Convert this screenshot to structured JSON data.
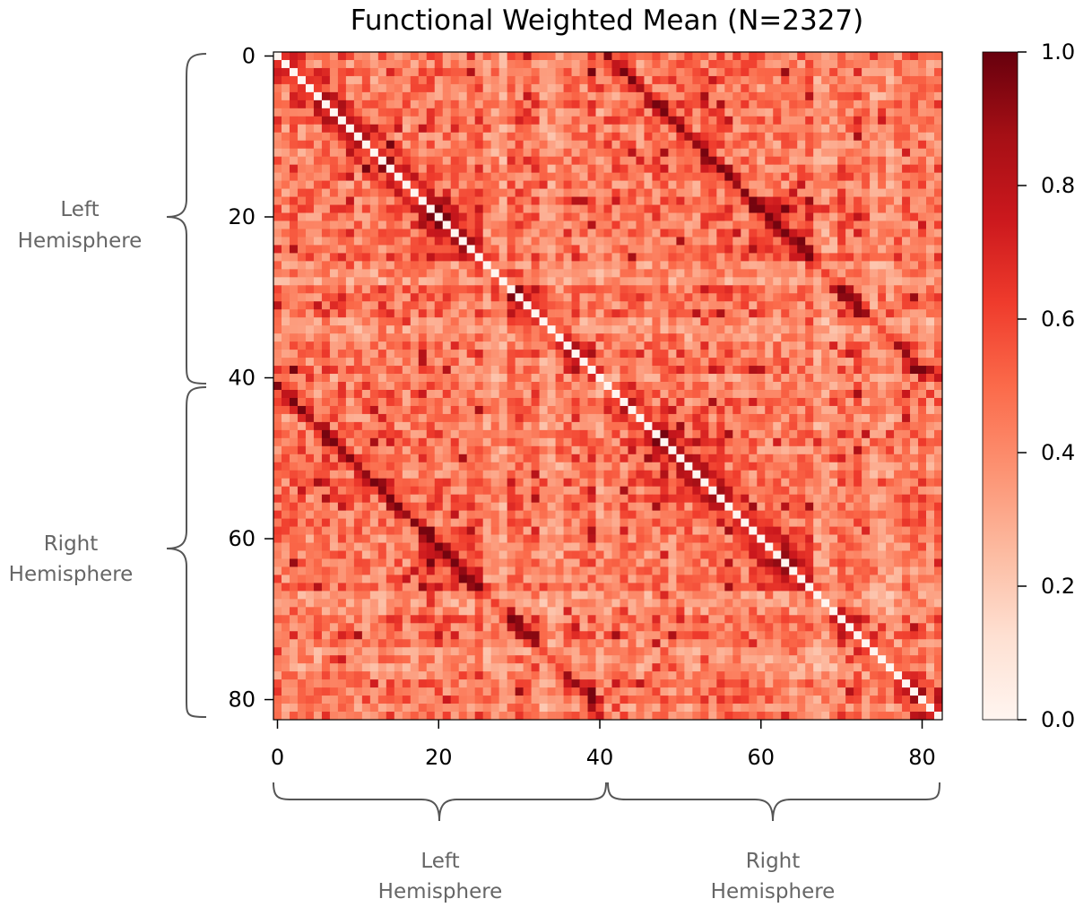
{
  "chart_data": {
    "type": "heatmap",
    "title": "Functional Weighted Mean (N=2327)",
    "matrix_size": 83,
    "x_ticks": [
      "0",
      "20",
      "40",
      "60",
      "80"
    ],
    "y_ticks": [
      "0",
      "20",
      "40",
      "60",
      "80"
    ],
    "colorbar": {
      "colormap": "Reds",
      "ticks": [
        "0.0",
        "0.2",
        "0.4",
        "0.6",
        "0.8",
        "1.0"
      ],
      "range": [
        0.0,
        1.0
      ]
    },
    "groups": [
      {
        "line1": "Left",
        "line2": "Hemisphere",
        "range": [
          0,
          41
        ]
      },
      {
        "line1": "Right",
        "line2": "Hemisphere",
        "range": [
          41,
          83
        ]
      }
    ],
    "diagonal_value": 0.0,
    "structure": "symmetric functional connectivity matrix; off-diagonal values mostly 0.3-0.9, strong homotopic (inter-hemispheric mirrored) diagonals"
  },
  "labels": {
    "left_y": {
      "line1": "Left",
      "line2": "Hemisphere"
    },
    "right_y": {
      "line1": "Right",
      "line2": "Hemisphere"
    },
    "left_x": {
      "line1": "Left",
      "line2": "Hemisphere"
    },
    "right_x": {
      "line1": "Right",
      "line2": "Hemisphere"
    }
  }
}
